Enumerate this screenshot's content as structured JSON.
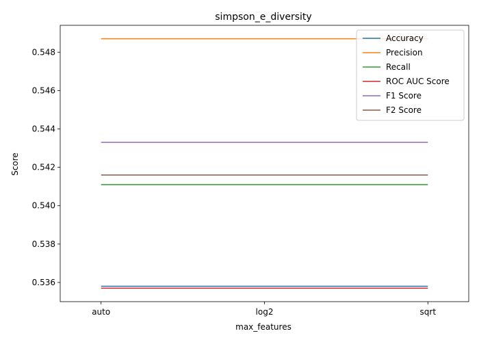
{
  "chart_data": {
    "type": "line",
    "title": "simpson_e_diversity",
    "xlabel": "max_features",
    "ylabel": "Score",
    "categories": [
      "auto",
      "log2",
      "sqrt"
    ],
    "ylim": [
      0.535,
      0.5494
    ],
    "yticks": [
      0.536,
      0.538,
      0.54,
      0.542,
      0.544,
      0.546,
      0.548
    ],
    "ytick_labels": [
      "0.536",
      "0.538",
      "0.540",
      "0.542",
      "0.544",
      "0.546",
      "0.548"
    ],
    "grid": false,
    "legend_position": "top-right",
    "series": [
      {
        "name": "Accuracy",
        "color": "#1f77b4",
        "values": [
          0.5358,
          0.5358,
          0.5358
        ]
      },
      {
        "name": "Precision",
        "color": "#ff7f0e",
        "values": [
          0.5487,
          0.5487,
          0.5487
        ]
      },
      {
        "name": "Recall",
        "color": "#2ca02c",
        "values": [
          0.5411,
          0.5411,
          0.5411
        ]
      },
      {
        "name": "ROC AUC Score",
        "color": "#d62728",
        "values": [
          0.5357,
          0.5357,
          0.5357
        ]
      },
      {
        "name": "F1 Score",
        "color": "#9467bd",
        "values": [
          0.5433,
          0.5433,
          0.5433
        ]
      },
      {
        "name": "F2 Score",
        "color": "#8c564b",
        "values": [
          0.5416,
          0.5416,
          0.5416
        ]
      }
    ]
  }
}
